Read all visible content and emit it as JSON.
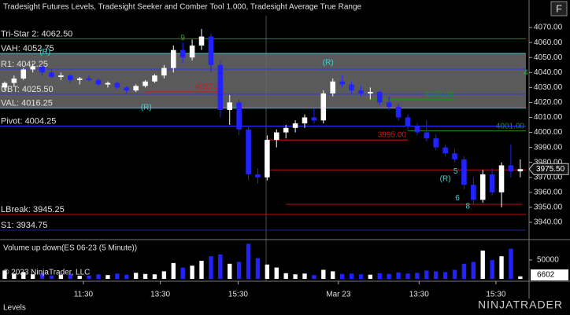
{
  "window": {
    "button": "F",
    "tab": "Levels",
    "brand": "NINJATRADER",
    "copyright": "© 2023 NinjaTrader, LLC"
  },
  "chart_data": [
    {
      "type": "candlestick",
      "title": "Tradesight Futures Levels, Tradesight Seeker and Comber Tool 1.000, Tradesight Average True Range",
      "up_color": "#ffffff",
      "down_color": "#2222ff",
      "ylim": [
        3929.5,
        4077.9
      ],
      "yticks": [
        {
          "value": 3940,
          "label": "3940.00"
        },
        {
          "value": 3950,
          "label": "3950.00"
        },
        {
          "value": 3960,
          "label": "3960.00"
        },
        {
          "value": 3970,
          "label": "3970.00"
        },
        {
          "value": 3980,
          "label": "3980.00"
        },
        {
          "value": 3990,
          "label": "3990.00"
        },
        {
          "value": 4000,
          "label": "4000.00"
        },
        {
          "value": 4010,
          "label": "4010.00"
        },
        {
          "value": 4020,
          "label": "4020.00"
        },
        {
          "value": 4030,
          "label": "4030.00"
        },
        {
          "value": 4040,
          "label": "4040.00"
        },
        {
          "value": 4050,
          "label": "4050.00"
        },
        {
          "value": 4060,
          "label": "4060.00"
        },
        {
          "value": 4070,
          "label": "4070.00"
        }
      ],
      "xlim": [
        -0.5,
        55.6
      ],
      "xticks": [
        {
          "value": 8.4,
          "label": "11:30"
        },
        {
          "value": 16.6,
          "label": "13:30"
        },
        {
          "value": 24.9,
          "label": "15:30"
        },
        {
          "value": 35.6,
          "label": "Mar 23"
        },
        {
          "value": 44.2,
          "label": "13:30"
        },
        {
          "value": 52.4,
          "label": "15:30"
        }
      ],
      "ohlc": [
        [
          4030,
          4034,
          4028,
          4033
        ],
        [
          4033,
          4038,
          4031,
          4036
        ],
        [
          4036,
          4043,
          4035,
          4042
        ],
        [
          4042,
          4046,
          4040,
          4044
        ],
        [
          4044,
          4045,
          4038,
          4040
        ],
        [
          4040,
          4042,
          4036,
          4037
        ],
        [
          4037,
          4040,
          4035,
          4038
        ],
        [
          4038,
          4039,
          4033,
          4035
        ],
        [
          4035,
          4037,
          4032,
          4036
        ],
        [
          4036,
          4038,
          4034,
          4035
        ],
        [
          4035,
          4036,
          4031,
          4032
        ],
        [
          4032,
          4034,
          4030,
          4033
        ],
        [
          4033,
          4034,
          4029,
          4030
        ],
        [
          4030,
          4031,
          4026,
          4028
        ],
        [
          4028,
          4032,
          4027,
          4031
        ],
        [
          4031,
          4035,
          4030,
          4034
        ],
        [
          4034,
          4039,
          4033,
          4038
        ],
        [
          4038,
          4045,
          4036,
          4043
        ],
        [
          4043,
          4058,
          4040,
          4055
        ],
        [
          4055,
          4060,
          4046,
          4050
        ],
        [
          4050,
          4062,
          4048,
          4058
        ],
        [
          4058,
          4069,
          4055,
          4064
        ],
        [
          4064,
          4066,
          4040,
          4045
        ],
        [
          4045,
          4048,
          4010,
          4015
        ],
        [
          4015,
          4025,
          4005,
          4020
        ],
        [
          4020,
          4022,
          3998,
          4002
        ],
        [
          4002,
          4004,
          3968,
          3972
        ],
        [
          3972,
          3976,
          3966,
          3970
        ],
        [
          3970,
          3998,
          3968,
          3995
        ],
        [
          3995,
          4002,
          3990,
          4000
        ],
        [
          4000,
          4005,
          3996,
          4003
        ],
        [
          4003,
          4008,
          4000,
          4006
        ],
        [
          4006,
          4012,
          4003,
          4010
        ],
        [
          4010,
          4016,
          4006,
          4008
        ],
        [
          4008,
          4028,
          4006,
          4026
        ],
        [
          4026,
          4036,
          4024,
          4034
        ],
        [
          4034,
          4038,
          4030,
          4032
        ],
        [
          4032,
          4034,
          4026,
          4028
        ],
        [
          4028,
          4031,
          4024,
          4026
        ],
        [
          4026,
          4030,
          4022,
          4027
        ],
        [
          4027,
          4028,
          4018,
          4020
        ],
        [
          4020,
          4024,
          4015,
          4017
        ],
        [
          4017,
          4019,
          4008,
          4010
        ],
        [
          4010,
          4012,
          4002,
          4004
        ],
        [
          4004,
          4006,
          3998,
          4000
        ],
        [
          4000,
          4008,
          3994,
          3996
        ],
        [
          3996,
          3999,
          3988,
          3990
        ],
        [
          3990,
          3992,
          3984,
          3986
        ],
        [
          3986,
          3989,
          3980,
          3982
        ],
        [
          3982,
          3984,
          3962,
          3965
        ],
        [
          3965,
          3970,
          3952,
          3955
        ],
        [
          3955,
          3975,
          3953,
          3972
        ],
        [
          3972,
          3976,
          3958,
          3960
        ],
        [
          3960,
          3980,
          3950,
          3978
        ],
        [
          3978,
          3992,
          3970,
          3974
        ],
        [
          3974,
          3982,
          3970,
          3975.5
        ]
      ],
      "last_price": {
        "value": 3975.5,
        "label": "3975.50"
      },
      "levels": [
        {
          "label": "Tri-Star 2: 4062.50",
          "value": 4062.5,
          "color": "#1f8f1f"
        },
        {
          "label": "VAH: 4052.75",
          "value": 4052.75,
          "color": "#3fc4c4"
        },
        {
          "label": "R1: 4042.25",
          "value": 4042.25,
          "color": "#3030ff"
        },
        {
          "label": "UBT: 4025.50",
          "value": 4025.5,
          "color": "#3030ff"
        },
        {
          "label": "VAL: 4016.25",
          "value": 4016.25,
          "color": "#3fc4c4"
        },
        {
          "label": "Pivot: 4004.25",
          "value": 4004.25,
          "color": "#3030ff"
        },
        {
          "label": "LBreak: 3945.25",
          "value": 3945.25,
          "color": "#c01010"
        },
        {
          "label": "S1: 3934.75",
          "value": 3934.75,
          "color": "#20209a"
        }
      ],
      "value_area_color": "#6a6a6a",
      "segments": [
        {
          "value": 4027,
          "label": "4027.00",
          "from": 15,
          "to": 23.5,
          "color": "#e01010"
        },
        {
          "value": 4022,
          "label": "4022.00",
          "from": 39,
          "to": 48,
          "color": "#1f8f1f"
        },
        {
          "value": 3995,
          "label": "3995.00",
          "from": 28,
          "to": 43,
          "color": "#e01010"
        },
        {
          "value": 4001,
          "label": "4001.00",
          "from": 43,
          "to": 55.6,
          "color": "#1f8f1f"
        },
        {
          "value": 3975,
          "from": 28,
          "to": 55.6,
          "color": "#c01010"
        },
        {
          "value": 3952,
          "from": 30,
          "to": 55.2,
          "color": "#c01010"
        }
      ],
      "annotations": [
        {
          "text": "(R)",
          "index": 4.3,
          "price": 4053.7,
          "color": "#3fd4d4"
        },
        {
          "text": "(R)",
          "index": 15.1,
          "price": 4016.5,
          "color": "#3fd4d4"
        },
        {
          "text": "(R)",
          "index": 34.5,
          "price": 4046.4,
          "color": "#3fd4d4"
        },
        {
          "text": "(R)",
          "index": 47,
          "price": 3968.8,
          "color": "#3fd4d4"
        },
        {
          "text": "9",
          "index": 19,
          "price": 4063,
          "color": "#2fa02f"
        },
        {
          "text": "4",
          "index": 55.6,
          "price": 4039.6,
          "color": "#2fc02f"
        },
        {
          "text": "5",
          "index": 48.1,
          "price": 3974,
          "color": "#3fd4d4"
        },
        {
          "text": "6",
          "index": 48.3,
          "price": 3956,
          "color": "#3fd4d4"
        },
        {
          "text": "8",
          "index": 49.4,
          "price": 3950.5,
          "color": "#3fd4d4"
        }
      ]
    },
    {
      "type": "bar",
      "title": "Volume up down(ES 06-23 (5 Minute))",
      "ylim": [
        0,
        100000
      ],
      "yticks": [
        50000
      ],
      "values": [
        22000,
        14000,
        18000,
        12000,
        15000,
        9000,
        11000,
        13000,
        8000,
        9000,
        12000,
        10000,
        14000,
        11000,
        16000,
        13000,
        12000,
        20000,
        42000,
        30000,
        35000,
        48000,
        60000,
        65000,
        40000,
        45000,
        93000,
        55000,
        38000,
        30000,
        15000,
        12000,
        14000,
        10000,
        24000,
        20000,
        13000,
        14000,
        12000,
        11000,
        15000,
        13000,
        17000,
        14000,
        16000,
        22000,
        20000,
        18000,
        24000,
        40000,
        45000,
        75000,
        50000,
        60000,
        80000,
        6602
      ]
    }
  ]
}
